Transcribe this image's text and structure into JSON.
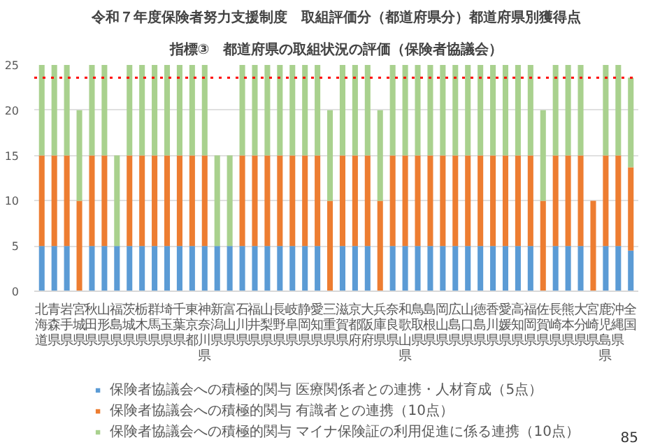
{
  "chart_data": {
    "type": "bar",
    "stacked": true,
    "title": "令和７年度保険者努力支援制度　取組評価分（都道府県分）都道府県別獲得点",
    "subtitle": "指標③　都道府県の取組状況の評価（保険者協議会）",
    "categories": [
      "北海道",
      "青森県",
      "岩手県",
      "宮城県",
      "秋田県",
      "山形県",
      "福島県",
      "茨城県",
      "栃木県",
      "群馬県",
      "埼玉県",
      "千葉県",
      "東京都",
      "神奈川県",
      "新潟県",
      "富山県",
      "石川県",
      "福井県",
      "山梨県",
      "長野県",
      "岐阜県",
      "静岡県",
      "愛知県",
      "三重県",
      "滋賀県",
      "京都府",
      "大阪府",
      "兵庫県",
      "奈良県",
      "和歌山県",
      "鳥取県",
      "島根県",
      "岡山県",
      "広島県",
      "山口県",
      "徳島県",
      "香川県",
      "愛媛県",
      "高知県",
      "福岡県",
      "佐賀県",
      "長崎県",
      "熊本県",
      "大分県",
      "宮崎県",
      "鹿児島県",
      "沖縄県",
      "全国"
    ],
    "series": [
      {
        "name": "保険者協議会への積極的関与 医療関係者との連携・人材育成（5点）",
        "color": "#5b9bd5",
        "values": [
          5,
          5,
          5,
          0,
          5,
          5,
          5,
          5,
          5,
          5,
          5,
          5,
          5,
          5,
          5,
          5,
          5,
          5,
          5,
          5,
          5,
          5,
          5,
          0,
          5,
          5,
          5,
          0,
          5,
          5,
          5,
          5,
          5,
          5,
          5,
          5,
          5,
          5,
          5,
          5,
          0,
          5,
          5,
          5,
          0,
          5,
          5,
          4.5
        ]
      },
      {
        "name": "保険者協議会への積極的関与 有識者との連携（10点）",
        "color": "#ed7d31",
        "values": [
          10,
          10,
          10,
          10,
          10,
          10,
          0,
          10,
          10,
          10,
          10,
          10,
          10,
          10,
          0,
          0,
          10,
          10,
          10,
          10,
          10,
          10,
          10,
          10,
          10,
          10,
          10,
          10,
          10,
          10,
          10,
          10,
          10,
          10,
          10,
          10,
          10,
          10,
          10,
          10,
          10,
          10,
          10,
          10,
          10,
          10,
          10,
          9.2
        ]
      },
      {
        "name": "保険者協議会への積極的関与 マイナ保険証の利用促進に係る連携（10点）",
        "color": "#a9d18e",
        "values": [
          10,
          10,
          10,
          10,
          10,
          10,
          10,
          10,
          10,
          10,
          10,
          10,
          10,
          10,
          10,
          10,
          10,
          10,
          10,
          10,
          10,
          10,
          10,
          10,
          10,
          10,
          10,
          10,
          10,
          10,
          10,
          10,
          10,
          10,
          10,
          10,
          10,
          10,
          10,
          10,
          10,
          10,
          10,
          10,
          0,
          10,
          10,
          9.9
        ]
      }
    ],
    "ylim": [
      0,
      25
    ],
    "yticks": [
      0,
      5,
      10,
      15,
      20,
      25
    ],
    "grid": "y",
    "legend": "bottom",
    "ref_lines": [
      {
        "axis": "y",
        "value": 23.6,
        "color": "#ff0000",
        "line_style": "dotted"
      }
    ],
    "annotations": [
      "85"
    ]
  }
}
